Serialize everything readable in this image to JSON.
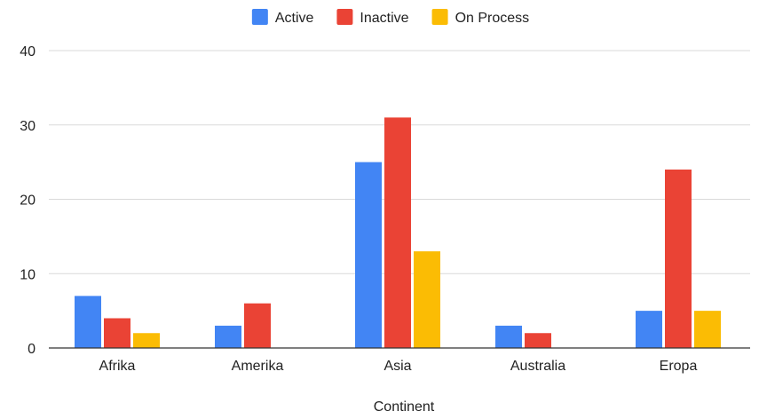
{
  "chart_data": {
    "type": "bar",
    "title": "",
    "xlabel": "Continent",
    "ylabel": "",
    "categories": [
      "Afrika",
      "Amerika",
      "Asia",
      "Australia",
      "Eropa"
    ],
    "series": [
      {
        "name": "Active",
        "color": "#4285f4",
        "values": [
          7,
          3,
          25,
          3,
          5
        ]
      },
      {
        "name": "Inactive",
        "color": "#ea4335",
        "values": [
          4,
          6,
          31,
          2,
          24
        ]
      },
      {
        "name": "On Process",
        "color": "#fbbc04",
        "values": [
          2,
          0,
          13,
          0,
          5
        ]
      }
    ],
    "ylim": [
      0,
      40
    ],
    "yticks": [
      0,
      10,
      20,
      30,
      40
    ],
    "grid": true,
    "legend_position": "top-center"
  }
}
